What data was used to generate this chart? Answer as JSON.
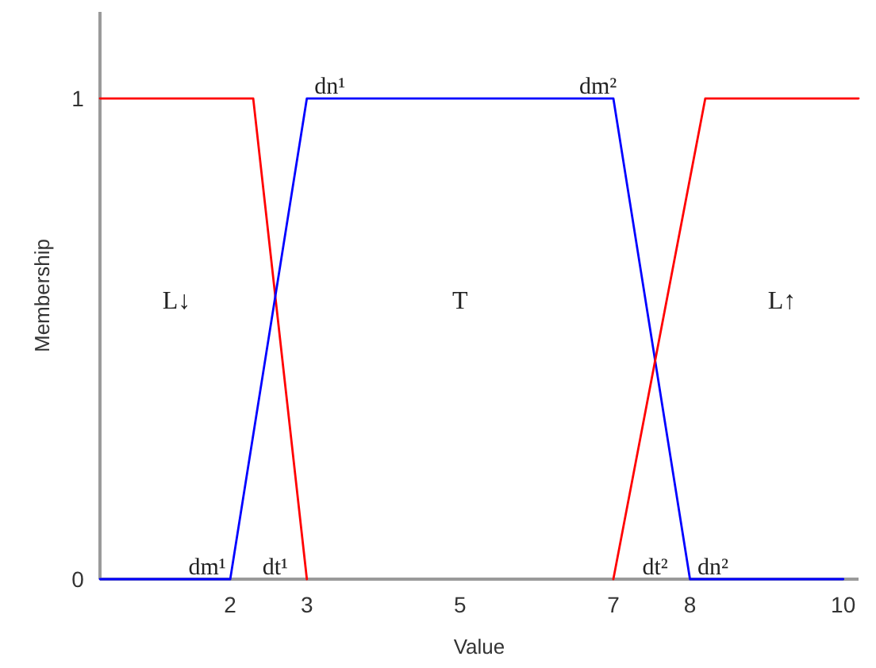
{
  "chart_data": {
    "type": "line",
    "xlabel": "Value",
    "ylabel": "Membership",
    "xlim": [
      0.3,
      10.2
    ],
    "ylim": [
      0,
      1.18
    ],
    "xticks": [
      2,
      3,
      5,
      7,
      8,
      10
    ],
    "yticks": [
      0,
      1
    ],
    "series": [
      {
        "color": "#ff0000",
        "x": [
          0.3,
          2.3,
          3
        ],
        "values": [
          1,
          1,
          0
        ]
      },
      {
        "color": "#0000ff",
        "x": [
          0.3,
          2,
          3,
          7,
          8,
          10
        ],
        "values": [
          0,
          0,
          1,
          1,
          0,
          0
        ]
      },
      {
        "color": "#ff0000",
        "x": [
          7,
          8.2,
          10.2
        ],
        "values": [
          0,
          1,
          1
        ]
      }
    ],
    "annotations": [
      "L↓",
      "T",
      "L↑",
      {
        "text": "dm¹",
        "x": 1.7,
        "y": 0
      },
      "dt¹",
      {
        "text": "dn¹",
        "x": 3.3,
        "y": 1
      },
      {
        "text": "dm²",
        "x": 6.8,
        "y": 1
      },
      "dt²",
      {
        "text": "dn²",
        "x": 8.3,
        "y": 0
      }
    ]
  }
}
